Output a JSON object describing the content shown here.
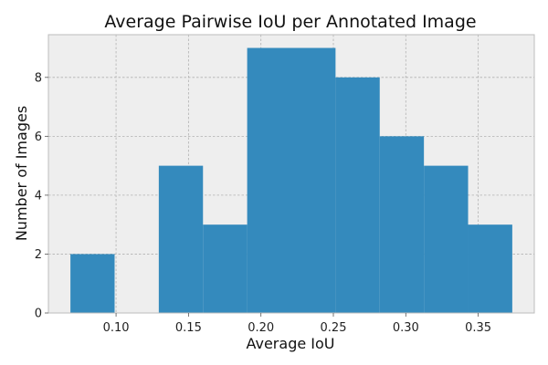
{
  "chart_data": {
    "type": "bar",
    "title": "Average Pairwise IoU per Annotated Image",
    "xlabel": "Average IoU",
    "ylabel": "Number of Images",
    "bins": [
      {
        "x0": 0.0685,
        "x1": 0.099,
        "count": 2
      },
      {
        "x0": 0.099,
        "x1": 0.1295,
        "count": 0
      },
      {
        "x0": 0.1295,
        "x1": 0.16,
        "count": 5
      },
      {
        "x0": 0.16,
        "x1": 0.1905,
        "count": 3
      },
      {
        "x0": 0.1905,
        "x1": 0.2515,
        "count": 9
      },
      {
        "x0": 0.2515,
        "x1": 0.282,
        "count": 8
      },
      {
        "x0": 0.282,
        "x1": 0.3125,
        "count": 6
      },
      {
        "x0": 0.3125,
        "x1": 0.343,
        "count": 5
      },
      {
        "x0": 0.343,
        "x1": 0.3735,
        "count": 3
      }
    ],
    "xlim": [
      0.0533,
      0.3887
    ],
    "ylim": [
      0,
      9.45
    ],
    "x_ticks": [
      {
        "value": 0.1,
        "label": "0.10"
      },
      {
        "value": 0.15,
        "label": "0.15"
      },
      {
        "value": 0.2,
        "label": "0.20"
      },
      {
        "value": 0.25,
        "label": "0.25"
      },
      {
        "value": 0.3,
        "label": "0.30"
      },
      {
        "value": 0.35,
        "label": "0.35"
      }
    ],
    "y_ticks": [
      {
        "value": 0,
        "label": "0"
      },
      {
        "value": 2,
        "label": "2"
      },
      {
        "value": 4,
        "label": "4"
      },
      {
        "value": 6,
        "label": "6"
      },
      {
        "value": 8,
        "label": "8"
      }
    ],
    "grid": true,
    "colors": {
      "bar": "#348abd",
      "plot_bg": "#eeeeee",
      "grid": "#b2b2b2",
      "frame": "#bcbcbc"
    }
  }
}
